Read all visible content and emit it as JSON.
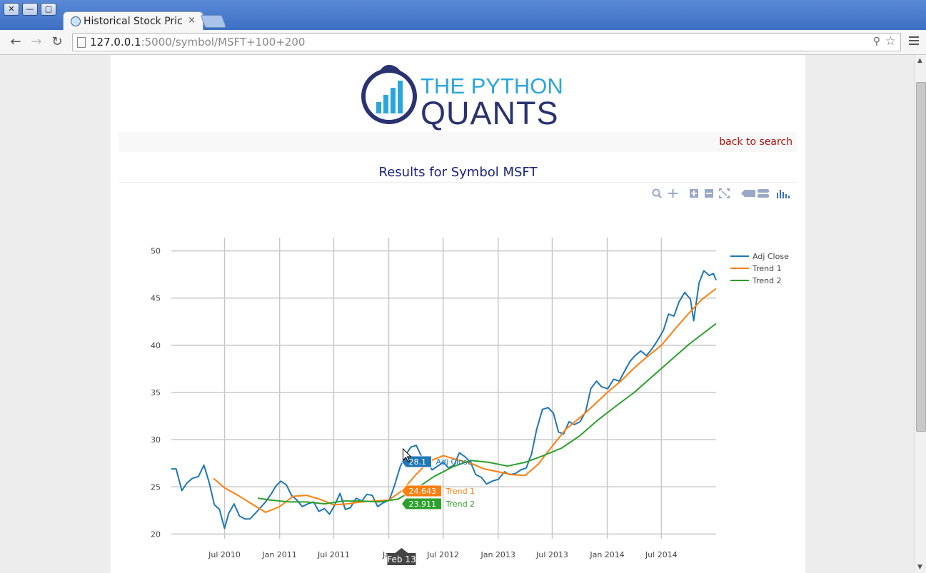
{
  "browser": {
    "tab_title": "Historical Stock Pric",
    "tab_close": "×",
    "url_host": "127.0.0.1",
    "url_rest": ":5000/symbol/MSFT+100+200",
    "nav": {
      "back": "←",
      "forward": "→",
      "reload": "↻"
    },
    "zoom_icon": "⚲",
    "star_icon": "☆",
    "window_controls": {
      "close": "✕",
      "minimize": "—",
      "maximize": "▢"
    }
  },
  "logo": {
    "line1": "THE PYTHON",
    "line2": "QUANTS"
  },
  "nav": {
    "back_to_search": "back to search"
  },
  "page": {
    "title": "Results for Symbol MSFT"
  },
  "plot_toolbar": [
    "zoom-icon",
    "pan-icon",
    "zoom-in-icon",
    "zoom-out-icon",
    "autoscale-icon",
    "hover-closest-icon",
    "hover-compare-icon",
    "plotly-logo-icon"
  ],
  "chart_data": {
    "type": "line",
    "y_ticks": [
      "20",
      "25",
      "30",
      "35",
      "40",
      "45",
      "50"
    ],
    "ylim": [
      19.5,
      50.5
    ],
    "x_range": [
      "2010-01-04",
      "2014-12-31"
    ],
    "x_ticks": [
      {
        "date": "2010-07-01",
        "label": "Jul 2010"
      },
      {
        "date": "2011-01-01",
        "label": "Jan 2011"
      },
      {
        "date": "2011-07-01",
        "label": "Jul 2011"
      },
      {
        "date": "2012-01-01",
        "label": "Jan"
      },
      {
        "date": "2012-07-01",
        "label": "Jul 2012"
      },
      {
        "date": "2013-01-01",
        "label": "Jan 2013"
      },
      {
        "date": "2013-07-01",
        "label": "Jul 2013"
      },
      {
        "date": "2014-01-01",
        "label": "Jan 2014"
      },
      {
        "date": "2014-07-01",
        "label": "Jul 2014"
      }
    ],
    "grid": true,
    "legend_position": "top-right",
    "series": [
      {
        "name": "Adj Close",
        "color": "#1f77b4",
        "points": [
          [
            "2010-01-04",
            26.9
          ],
          [
            "2010-01-20",
            26.9
          ],
          [
            "2010-02-08",
            24.6
          ],
          [
            "2010-02-25",
            25.4
          ],
          [
            "2010-03-15",
            25.9
          ],
          [
            "2010-04-05",
            26.1
          ],
          [
            "2010-04-23",
            27.3
          ],
          [
            "2010-05-10",
            25.5
          ],
          [
            "2010-05-28",
            23.1
          ],
          [
            "2010-06-14",
            22.6
          ],
          [
            "2010-07-01",
            20.6
          ],
          [
            "2010-07-15",
            22.2
          ],
          [
            "2010-08-02",
            23.2
          ],
          [
            "2010-08-20",
            21.9
          ],
          [
            "2010-09-07",
            21.6
          ],
          [
            "2010-09-24",
            21.6
          ],
          [
            "2010-10-12",
            22.2
          ],
          [
            "2010-10-29",
            22.8
          ],
          [
            "2010-11-15",
            23.4
          ],
          [
            "2010-12-03",
            24.2
          ],
          [
            "2010-12-20",
            25.1
          ],
          [
            "2011-01-05",
            25.6
          ],
          [
            "2011-01-24",
            25.2
          ],
          [
            "2011-02-10",
            24.1
          ],
          [
            "2011-02-28",
            23.6
          ],
          [
            "2011-03-18",
            22.9
          ],
          [
            "2011-04-05",
            23.2
          ],
          [
            "2011-04-25",
            23.4
          ],
          [
            "2011-05-12",
            22.4
          ],
          [
            "2011-05-31",
            22.7
          ],
          [
            "2011-06-17",
            22.1
          ],
          [
            "2011-07-05",
            23.1
          ],
          [
            "2011-07-22",
            24.3
          ],
          [
            "2011-08-09",
            22.6
          ],
          [
            "2011-08-26",
            22.8
          ],
          [
            "2011-09-14",
            23.8
          ],
          [
            "2011-10-03",
            23.5
          ],
          [
            "2011-10-20",
            24.2
          ],
          [
            "2011-11-07",
            24.1
          ],
          [
            "2011-11-25",
            22.9
          ],
          [
            "2011-12-13",
            23.3
          ],
          [
            "2012-01-03",
            23.6
          ],
          [
            "2012-01-20",
            25.1
          ],
          [
            "2012-02-08",
            27.1
          ],
          [
            "2012-02-27",
            28.4
          ],
          [
            "2012-03-15",
            29.2
          ],
          [
            "2012-04-02",
            29.4
          ],
          [
            "2012-04-20",
            28.2
          ],
          [
            "2012-05-08",
            27.8
          ],
          [
            "2012-05-25",
            26.8
          ],
          [
            "2012-06-13",
            27.2
          ],
          [
            "2012-07-02",
            27.6
          ],
          [
            "2012-07-19",
            27.0
          ],
          [
            "2012-08-07",
            27.3
          ],
          [
            "2012-08-24",
            28.6
          ],
          [
            "2012-09-12",
            28.2
          ],
          [
            "2012-10-01",
            27.6
          ],
          [
            "2012-10-18",
            26.3
          ],
          [
            "2012-11-06",
            26.0
          ],
          [
            "2012-11-23",
            25.3
          ],
          [
            "2012-12-12",
            25.6
          ],
          [
            "2013-01-02",
            25.8
          ],
          [
            "2013-01-22",
            26.6
          ],
          [
            "2013-02-08",
            26.3
          ],
          [
            "2013-02-27",
            26.4
          ],
          [
            "2013-03-18",
            26.8
          ],
          [
            "2013-04-05",
            27.0
          ],
          [
            "2013-04-23",
            28.5
          ],
          [
            "2013-05-10",
            31.1
          ],
          [
            "2013-05-29",
            33.2
          ],
          [
            "2013-06-17",
            33.4
          ],
          [
            "2013-07-05",
            32.8
          ],
          [
            "2013-07-22",
            30.8
          ],
          [
            "2013-08-08",
            30.6
          ],
          [
            "2013-08-26",
            31.9
          ],
          [
            "2013-09-13",
            31.6
          ],
          [
            "2013-10-02",
            31.9
          ],
          [
            "2013-10-21",
            33.0
          ],
          [
            "2013-11-07",
            35.4
          ],
          [
            "2013-11-26",
            36.2
          ],
          [
            "2013-12-13",
            35.6
          ],
          [
            "2014-01-03",
            35.4
          ],
          [
            "2014-01-22",
            36.4
          ],
          [
            "2014-02-10",
            36.2
          ],
          [
            "2014-02-27",
            37.2
          ],
          [
            "2014-03-18",
            38.3
          ],
          [
            "2014-04-04",
            38.9
          ],
          [
            "2014-04-23",
            39.4
          ],
          [
            "2014-05-12",
            38.9
          ],
          [
            "2014-05-30",
            39.6
          ],
          [
            "2014-06-18",
            40.5
          ],
          [
            "2014-07-08",
            41.6
          ],
          [
            "2014-07-25",
            43.3
          ],
          [
            "2014-08-12",
            43.1
          ],
          [
            "2014-08-29",
            44.6
          ],
          [
            "2014-09-17",
            45.6
          ],
          [
            "2014-10-06",
            44.9
          ],
          [
            "2014-10-17",
            42.6
          ],
          [
            "2014-11-04",
            46.6
          ],
          [
            "2014-11-20",
            47.9
          ],
          [
            "2014-12-08",
            47.4
          ],
          [
            "2014-12-22",
            47.6
          ],
          [
            "2014-12-31",
            46.9
          ]
        ]
      },
      {
        "name": "Trend 1",
        "color": "#ff7f0e",
        "points": [
          [
            "2010-05-25",
            25.9
          ],
          [
            "2010-07-01",
            24.9
          ],
          [
            "2010-08-15",
            24.1
          ],
          [
            "2010-09-30",
            23.2
          ],
          [
            "2010-11-15",
            22.3
          ],
          [
            "2011-01-01",
            22.9
          ],
          [
            "2011-02-15",
            24.0
          ],
          [
            "2011-04-01",
            24.1
          ],
          [
            "2011-05-15",
            23.7
          ],
          [
            "2011-07-01",
            23.1
          ],
          [
            "2011-08-15",
            23.2
          ],
          [
            "2011-10-01",
            23.4
          ],
          [
            "2011-11-15",
            23.5
          ],
          [
            "2012-01-01",
            23.6
          ],
          [
            "2012-02-15",
            24.6
          ],
          [
            "2012-04-01",
            26.3
          ],
          [
            "2012-05-15",
            27.7
          ],
          [
            "2012-07-01",
            28.3
          ],
          [
            "2012-08-15",
            27.9
          ],
          [
            "2012-10-01",
            27.5
          ],
          [
            "2012-11-15",
            26.9
          ],
          [
            "2013-01-01",
            26.6
          ],
          [
            "2013-02-15",
            26.3
          ],
          [
            "2013-04-01",
            26.2
          ],
          [
            "2013-05-15",
            27.4
          ],
          [
            "2013-07-01",
            29.3
          ],
          [
            "2013-08-15",
            31.1
          ],
          [
            "2013-10-01",
            32.3
          ],
          [
            "2013-11-15",
            33.6
          ],
          [
            "2014-01-01",
            35.0
          ],
          [
            "2014-02-15",
            36.2
          ],
          [
            "2014-04-01",
            37.6
          ],
          [
            "2014-05-15",
            38.8
          ],
          [
            "2014-07-01",
            40.0
          ],
          [
            "2014-08-15",
            41.7
          ],
          [
            "2014-10-01",
            43.4
          ],
          [
            "2014-11-15",
            44.9
          ],
          [
            "2014-12-31",
            46.0
          ]
        ]
      },
      {
        "name": "Trend 2",
        "color": "#2ca02c",
        "points": [
          [
            "2010-10-20",
            23.8
          ],
          [
            "2010-12-01",
            23.6
          ],
          [
            "2011-02-01",
            23.4
          ],
          [
            "2011-04-01",
            23.4
          ],
          [
            "2011-06-01",
            23.2
          ],
          [
            "2011-08-01",
            23.5
          ],
          [
            "2011-10-01",
            23.5
          ],
          [
            "2011-12-01",
            23.4
          ],
          [
            "2012-02-01",
            23.7
          ],
          [
            "2012-04-01",
            24.8
          ],
          [
            "2012-06-01",
            26.1
          ],
          [
            "2012-08-01",
            27.1
          ],
          [
            "2012-10-01",
            27.8
          ],
          [
            "2012-12-01",
            27.6
          ],
          [
            "2013-02-01",
            27.2
          ],
          [
            "2013-04-01",
            27.6
          ],
          [
            "2013-06-01",
            28.3
          ],
          [
            "2013-08-01",
            29.1
          ],
          [
            "2013-10-01",
            30.4
          ],
          [
            "2013-12-01",
            32.1
          ],
          [
            "2014-02-01",
            33.6
          ],
          [
            "2014-04-01",
            35.0
          ],
          [
            "2014-06-01",
            36.7
          ],
          [
            "2014-08-01",
            38.4
          ],
          [
            "2014-10-01",
            40.1
          ],
          [
            "2014-12-31",
            42.3
          ]
        ]
      }
    ],
    "hover": {
      "date_label": "Feb 13",
      "date": "2012-02-13",
      "items": [
        {
          "value": "28.1",
          "series": "Adj Close",
          "y": 28.1,
          "color": "#1f77b4"
        },
        {
          "value": "24.643",
          "series": "Trend 1",
          "y": 24.643,
          "color": "#ff7f0e"
        },
        {
          "value": "23.911",
          "series": "Trend 2",
          "y": 23.911,
          "color": "#2ca02c"
        }
      ]
    }
  }
}
